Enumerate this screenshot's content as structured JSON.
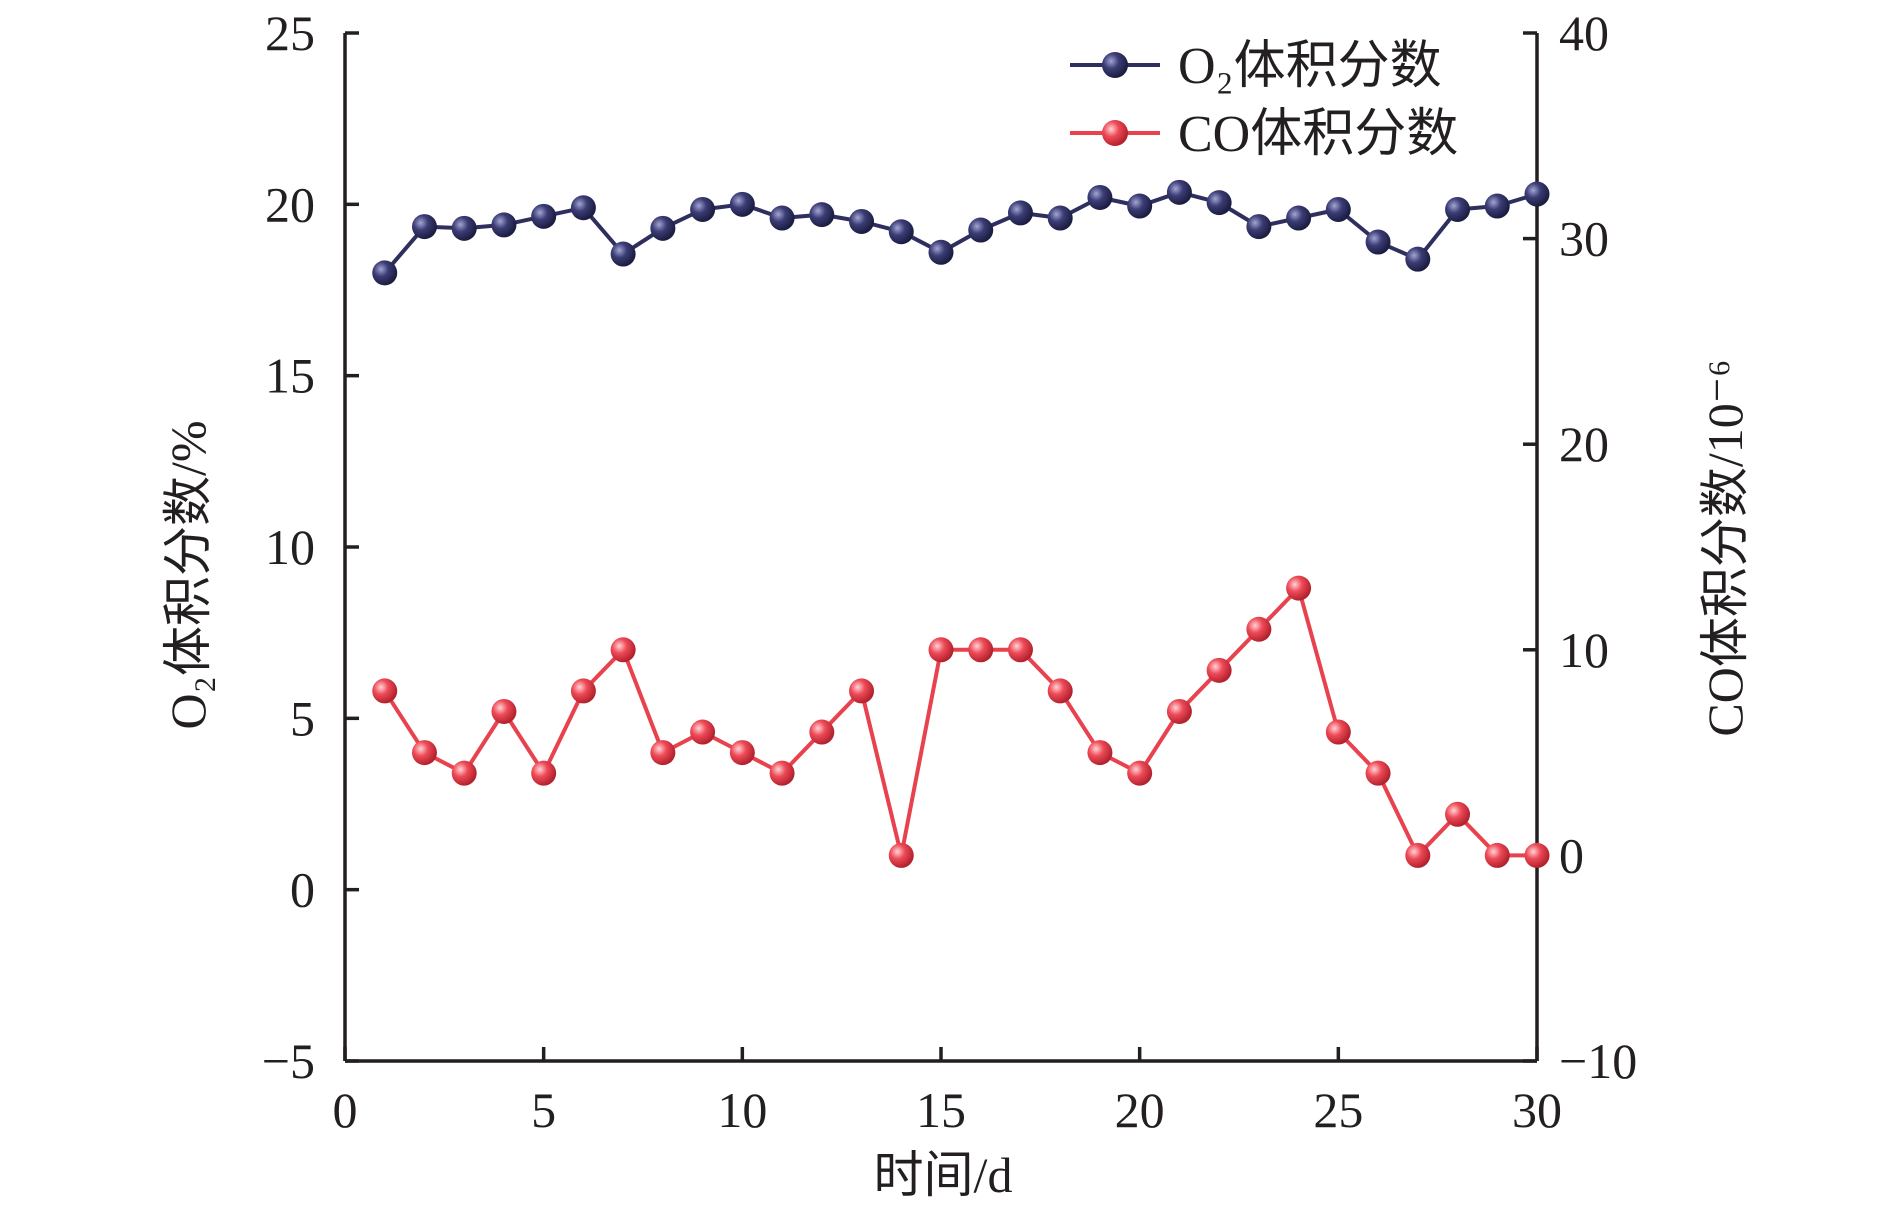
{
  "chart_data": {
    "type": "line",
    "xlabel": "时间/d",
    "ylabel_left": "O₂体积分数/%",
    "ylabel_right": "CO体积分数/10⁻⁶",
    "xlim": [
      0,
      30
    ],
    "ylim_left": [
      -5,
      25
    ],
    "ylim_right": [
      -10,
      40
    ],
    "x_ticks": [
      0,
      5,
      10,
      15,
      20,
      25,
      30
    ],
    "y_ticks_left": [
      -5,
      0,
      5,
      10,
      15,
      20,
      25
    ],
    "y_ticks_right": [
      -10,
      0,
      10,
      20,
      30,
      40
    ],
    "y_tick_labels_left": [
      "−5",
      "0",
      "5",
      "10",
      "15",
      "20",
      "25"
    ],
    "y_tick_labels_right": [
      "−10",
      "0",
      "10",
      "20",
      "30",
      "40"
    ],
    "legend_position": "top-right",
    "grid": false,
    "x": [
      1,
      2,
      3,
      4,
      5,
      6,
      7,
      8,
      9,
      10,
      11,
      12,
      13,
      14,
      15,
      16,
      17,
      18,
      19,
      20,
      21,
      22,
      23,
      24,
      25,
      26,
      27,
      28,
      29,
      30
    ],
    "series": [
      {
        "name": "O₂体积分数",
        "axis": "left",
        "color": "#2e2f5e",
        "values": [
          18.0,
          19.35,
          19.3,
          19.4,
          19.65,
          19.9,
          18.55,
          19.3,
          19.85,
          20.0,
          19.6,
          19.7,
          19.5,
          19.2,
          18.6,
          19.25,
          19.75,
          19.6,
          20.2,
          19.95,
          20.35,
          20.05,
          19.35,
          19.6,
          19.85,
          18.9,
          18.4,
          19.85,
          19.95,
          20.3
        ]
      },
      {
        "name": "CO体积分数",
        "axis": "right",
        "color": "#e8424f",
        "values": [
          8,
          5,
          4,
          7,
          4,
          8,
          10,
          5,
          6,
          5,
          4,
          6,
          8,
          0,
          10,
          10,
          10,
          8,
          5,
          4,
          7,
          9,
          11,
          13,
          6,
          4,
          0,
          2,
          0,
          0
        ]
      }
    ]
  }
}
